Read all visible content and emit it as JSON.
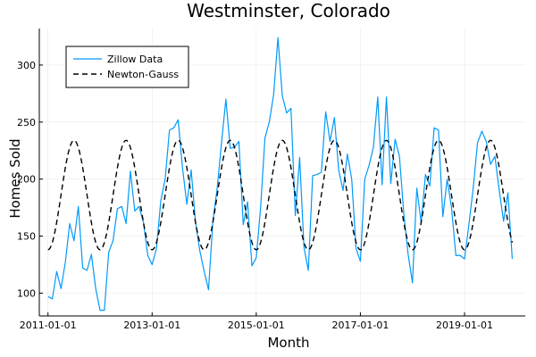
{
  "chart_data": {
    "type": "line",
    "title": "Westminster, Colorado",
    "xlabel": "Month",
    "ylabel": "Homes Sold",
    "xlim": [
      "2010-11-01",
      "2020-03-01"
    ],
    "ylim": [
      80,
      332
    ],
    "xticks": [
      "2011-01-01",
      "2013-01-01",
      "2015-01-01",
      "2017-01-01",
      "2019-01-01"
    ],
    "yticks": [
      100,
      150,
      200,
      250,
      300
    ],
    "grid": true,
    "legend_position": "top-left",
    "series": [
      {
        "name": "Zillow Data",
        "style": "solid",
        "color": "#009AFA",
        "x": [
          "2011-01-01",
          "2011-02-01",
          "2011-03-01",
          "2011-04-01",
          "2011-05-01",
          "2011-06-01",
          "2011-07-01",
          "2011-08-01",
          "2011-09-01",
          "2011-10-01",
          "2011-11-01",
          "2011-12-01",
          "2012-01-01",
          "2012-02-01",
          "2012-03-01",
          "2012-04-01",
          "2012-05-01",
          "2012-06-01",
          "2012-07-01",
          "2012-08-01",
          "2012-09-01",
          "2012-10-01",
          "2012-11-01",
          "2012-12-01",
          "2013-01-01",
          "2013-02-01",
          "2013-03-01",
          "2013-04-01",
          "2013-05-01",
          "2013-06-01",
          "2013-07-01",
          "2013-08-01",
          "2013-09-01",
          "2013-10-01",
          "2013-11-01",
          "2013-12-01",
          "2014-01-01",
          "2014-02-01",
          "2014-03-01",
          "2014-04-01",
          "2014-05-01",
          "2014-06-01",
          "2014-07-01",
          "2014-08-01",
          "2014-09-01",
          "2014-10-01",
          "2014-11-01",
          "2014-12-01",
          "2015-01-01",
          "2015-02-01",
          "2015-03-01",
          "2015-04-01",
          "2015-05-01",
          "2015-06-01",
          "2015-07-01",
          "2015-08-01",
          "2015-09-01",
          "2015-10-01",
          "2015-11-01",
          "2015-12-01",
          "2016-01-01",
          "2016-02-01",
          "2016-03-01",
          "2016-04-01",
          "2016-05-01",
          "2016-06-01",
          "2016-07-01",
          "2016-08-01",
          "2016-09-01",
          "2016-10-01",
          "2016-11-01",
          "2016-12-01",
          "2017-01-01",
          "2017-02-01",
          "2017-03-01",
          "2017-04-01",
          "2017-05-01",
          "2017-06-01",
          "2017-07-01",
          "2017-08-01",
          "2017-09-01",
          "2017-10-01",
          "2017-11-01",
          "2017-12-01",
          "2018-01-01",
          "2018-02-01",
          "2018-03-01",
          "2018-04-01",
          "2018-05-01",
          "2018-06-01",
          "2018-07-01",
          "2018-08-01",
          "2018-09-01",
          "2018-10-01",
          "2018-11-01",
          "2018-12-01",
          "2019-01-01",
          "2019-02-01",
          "2019-03-01",
          "2019-04-01",
          "2019-05-01",
          "2019-06-01",
          "2019-07-01",
          "2019-08-01",
          "2019-09-01",
          "2019-10-01",
          "2019-11-01",
          "2019-12-01"
        ],
        "values": [
          97,
          95,
          119,
          104,
          127,
          161,
          146,
          176,
          122,
          120,
          134,
          104,
          85,
          85,
          136,
          146,
          174,
          176,
          161,
          207,
          172,
          176,
          162,
          133,
          125,
          139,
          181,
          200,
          243,
          245,
          252,
          210,
          178,
          208,
          162,
          137,
          119,
          103,
          163,
          192,
          232,
          270,
          227,
          228,
          233,
          160,
          180,
          124,
          131,
          175,
          236,
          250,
          274,
          324,
          273,
          258,
          262,
          168,
          219,
          140,
          120,
          203,
          204,
          206,
          259,
          233,
          254,
          208,
          190,
          222,
          200,
          139,
          128,
          200,
          212,
          228,
          272,
          195,
          272,
          196,
          235,
          220,
          170,
          134,
          109,
          192,
          162,
          204,
          194,
          245,
          243,
          167,
          200,
          175,
          133,
          133,
          130,
          160,
          192,
          232,
          242,
          233,
          213,
          220,
          190,
          163,
          188,
          130
        ]
      },
      {
        "name": "Newton-Gauss",
        "style": "dashed",
        "color": "#000000",
        "x_range": [
          "2011-01-01",
          "2019-12-01"
        ],
        "model": "sinusoid",
        "mean": 186,
        "amplitude": 48,
        "period_months": 12,
        "peak_month": 7
      }
    ]
  }
}
